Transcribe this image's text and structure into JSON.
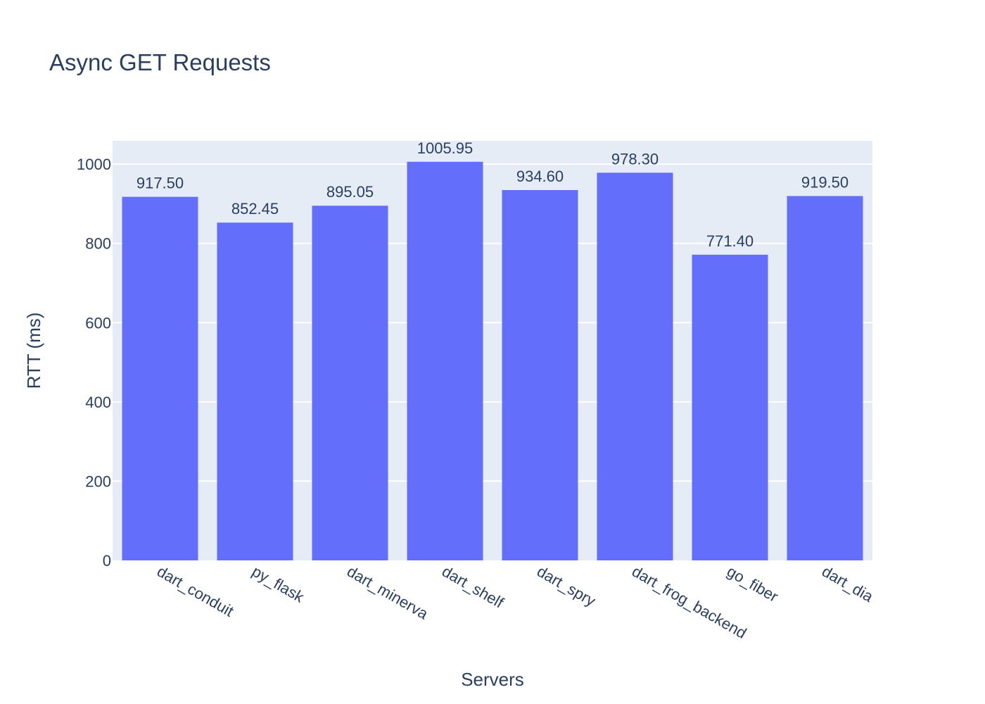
{
  "colors": {
    "plot_background": "#e5ecf6",
    "grid": "#ffffff",
    "bar": "#636efa",
    "text": "#2a3f5f",
    "page_background": "#ffffff"
  },
  "chart_data": {
    "type": "bar",
    "title": "Async GET Requests",
    "xlabel": "Servers",
    "ylabel": "RTT (ms)",
    "categories": [
      "dart_conduit",
      "py_flask",
      "dart_minerva",
      "dart_shelf",
      "dart_spry",
      "dart_frog_backend",
      "go_fiber",
      "dart_dia"
    ],
    "values": [
      917.5,
      852.45,
      895.05,
      1005.95,
      934.6,
      978.3,
      771.4,
      919.5
    ],
    "value_labels": [
      "917.50",
      "852.45",
      "895.05",
      "1005.95",
      "934.60",
      "978.30",
      "771.40",
      "919.50"
    ],
    "ylim": [
      0,
      1058.9
    ],
    "yticks": [
      0,
      200,
      400,
      600,
      800,
      1000
    ],
    "ytick_labels": [
      "0",
      "200",
      "400",
      "600",
      "800",
      "1000"
    ],
    "grid": true,
    "legend": "none",
    "x_tick_angle": 30
  }
}
